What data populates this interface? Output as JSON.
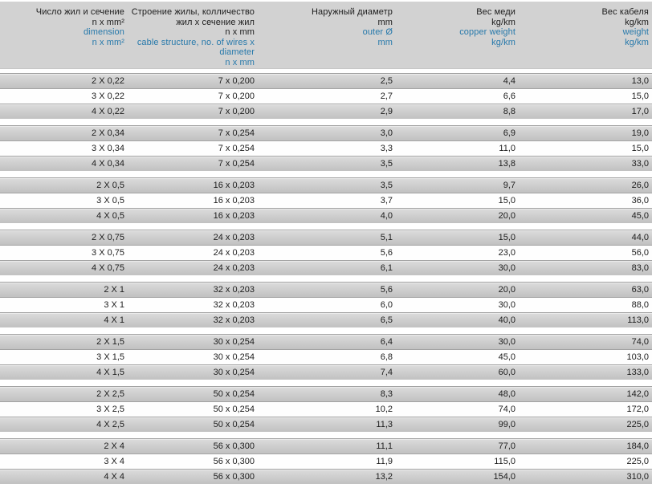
{
  "colors": {
    "header_bg": "#d2d2d2",
    "row_gray_top": "#dcdcdc",
    "row_gray_bottom": "#c1c1c1",
    "row_white": "#fefefe",
    "row_separator": "#a2a2a2",
    "text_primary": "#1c1c1c",
    "text_blue": "#2779ab"
  },
  "table": {
    "columns": [
      {
        "id": "dimension",
        "lines_black": [
          "Число жил и сечение",
          "n x mm²"
        ],
        "lines_blue": [
          "dimension",
          "n x mm²"
        ]
      },
      {
        "id": "cable-structure",
        "lines_black": [
          "Строение жилы, колличество",
          "жил x сечение жил",
          "n x mm"
        ],
        "lines_blue": [
          "cable structure, no. of wires x",
          "diameter",
          "n x mm"
        ]
      },
      {
        "id": "outer-diameter",
        "lines_black": [
          "Наружный диаметр",
          "mm"
        ],
        "lines_blue": [
          "outer Ø",
          "mm"
        ]
      },
      {
        "id": "copper-weight",
        "lines_black": [
          "Вес меди",
          "kg/km"
        ],
        "lines_blue": [
          "copper weight",
          "kg/km"
        ]
      },
      {
        "id": "cable-weight",
        "lines_black": [
          "Вес кабеля",
          "kg/km"
        ],
        "lines_blue": [
          "weight",
          "kg/km"
        ]
      }
    ],
    "groups": [
      {
        "rows": [
          [
            "2 X 0,22",
            "7 x 0,200",
            "2,5",
            "4,4",
            "13,0"
          ],
          [
            "3 X 0,22",
            "7 x 0,200",
            "2,7",
            "6,6",
            "15,0"
          ],
          [
            "4 X 0,22",
            "7 x 0,200",
            "2,9",
            "8,8",
            "17,0"
          ]
        ]
      },
      {
        "rows": [
          [
            "2 X 0,34",
            "7 x 0,254",
            "3,0",
            "6,9",
            "19,0"
          ],
          [
            "3 X 0,34",
            "7 x 0,254",
            "3,3",
            "11,0",
            "15,0"
          ],
          [
            "4 X 0,34",
            "7 x 0,254",
            "3,5",
            "13,8",
            "33,0"
          ]
        ]
      },
      {
        "rows": [
          [
            "2 X 0,5",
            "16 x 0,203",
            "3,5",
            "9,7",
            "26,0"
          ],
          [
            "3 X 0,5",
            "16 x 0,203",
            "3,7",
            "15,0",
            "36,0"
          ],
          [
            "4 X 0,5",
            "16 x 0,203",
            "4,0",
            "20,0",
            "45,0"
          ]
        ]
      },
      {
        "rows": [
          [
            "2 X 0,75",
            "24 x 0,203",
            "5,1",
            "15,0",
            "44,0"
          ],
          [
            "3 X 0,75",
            "24 x 0,203",
            "5,6",
            "23,0",
            "56,0"
          ],
          [
            "4 X 0,75",
            "24 x 0,203",
            "6,1",
            "30,0",
            "83,0"
          ]
        ]
      },
      {
        "rows": [
          [
            "2 X 1",
            "32 x 0,203",
            "5,6",
            "20,0",
            "63,0"
          ],
          [
            "3 X 1",
            "32 x 0,203",
            "6,0",
            "30,0",
            "88,0"
          ],
          [
            "4 X 1",
            "32 x 0,203",
            "6,5",
            "40,0",
            "113,0"
          ]
        ]
      },
      {
        "rows": [
          [
            "2 X 1,5",
            "30 x 0,254",
            "6,4",
            "30,0",
            "74,0"
          ],
          [
            "3 X 1,5",
            "30 x 0,254",
            "6,8",
            "45,0",
            "103,0"
          ],
          [
            "4 X 1,5",
            "30 x 0,254",
            "7,4",
            "60,0",
            "133,0"
          ]
        ]
      },
      {
        "rows": [
          [
            "2 X 2,5",
            "50 x 0,254",
            "8,3",
            "48,0",
            "142,0"
          ],
          [
            "3 X 2,5",
            "50 x 0,254",
            "10,2",
            "74,0",
            "172,0"
          ],
          [
            "4 X 2,5",
            "50 x 0,254",
            "11,3",
            "99,0",
            "225,0"
          ]
        ]
      },
      {
        "rows": [
          [
            "2 X 4",
            "56 x 0,300",
            "11,1",
            "77,0",
            "184,0"
          ],
          [
            "3 X 4",
            "56 x 0,300",
            "11,9",
            "115,0",
            "225,0"
          ],
          [
            "4 X 4",
            "56 x 0,300",
            "13,2",
            "154,0",
            "310,0"
          ]
        ]
      }
    ]
  }
}
